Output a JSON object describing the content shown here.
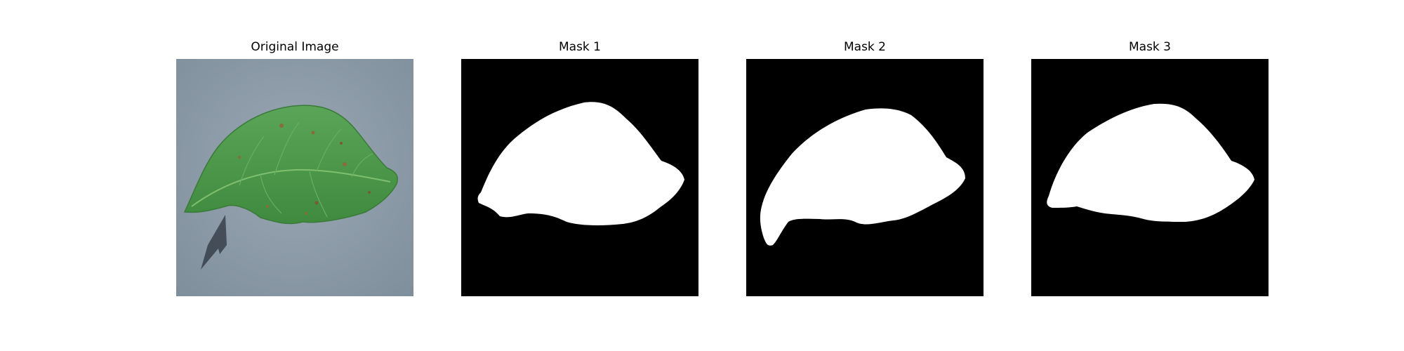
{
  "figure": {
    "panels": [
      {
        "title": "Original Image",
        "content": "leaf-photo"
      },
      {
        "title": "Mask 1",
        "content": "binary-mask"
      },
      {
        "title": "Mask 2",
        "content": "binary-mask"
      },
      {
        "title": "Mask 3",
        "content": "binary-mask"
      }
    ]
  },
  "colors": {
    "mask_foreground": "#ffffff",
    "mask_background": "#000000",
    "photo_background": "#8f9ca8",
    "leaf_green": "#4f9a4a"
  }
}
